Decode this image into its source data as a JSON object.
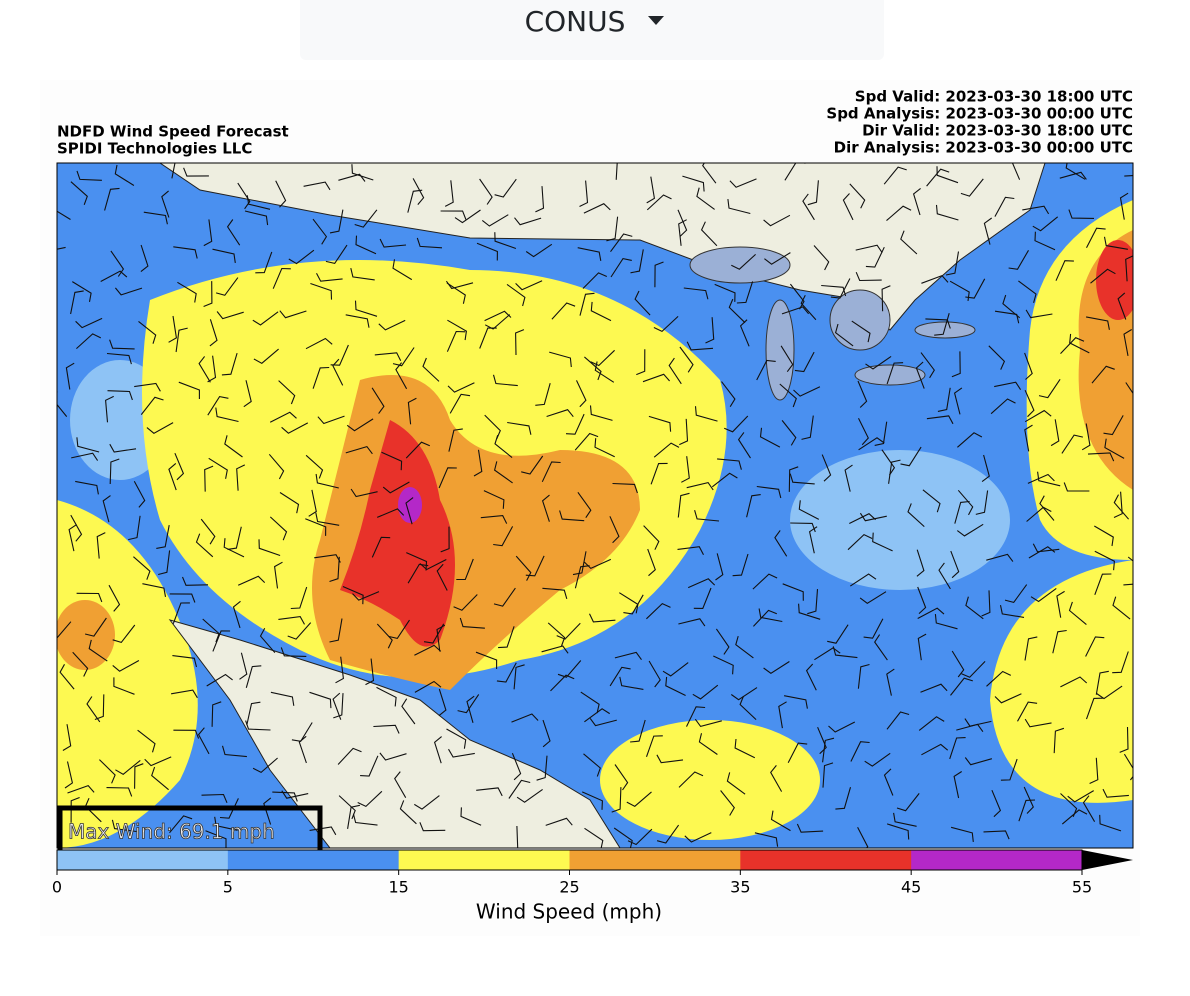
{
  "dropdown": {
    "label": "CONUS"
  },
  "map": {
    "title_left": [
      "NDFD Wind Speed Forecast",
      "SPIDI Technologies LLC"
    ],
    "title_right": [
      "Spd Valid: 2023-03-30 18:00 UTC",
      "Spd Analysis: 2023-03-30 00:00 UTC",
      "Dir Valid: 2023-03-30 18:00 UTC",
      "Dir Analysis: 2023-03-30 00:00 UTC"
    ],
    "annotation": "Max Wind: 69.1 mph"
  },
  "colorbar": {
    "label": "Wind Speed (mph)",
    "ticks": [
      0,
      5,
      15,
      25,
      35,
      45,
      55
    ],
    "colors": [
      "#8ec3f5",
      "#4a90f0",
      "#fdf951",
      "#f0a033",
      "#e8322a",
      "#b428c8"
    ],
    "extend_color": "#000000"
  }
}
